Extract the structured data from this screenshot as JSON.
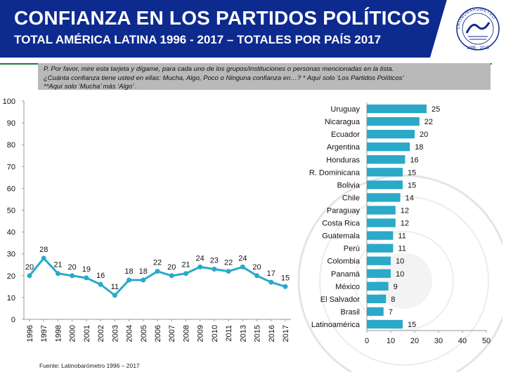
{
  "header": {
    "title": "CONFIANZA EN LOS PARTIDOS POLÍTICOS",
    "subtitle": "TOTAL AMÉRICA LATINA 1996 - 2017 – TOTALES POR PAÍS 2017",
    "logo_text": "LATINOBARÓMETRO",
    "logo_years": "1995 - 2015"
  },
  "question": {
    "line1": "P. Por favor, mire esta tarjeta y dígame, para cada uno de los grupos/instituciones o personas mencionadas en la lista.",
    "line2": "¿Cuánta confianza tiene usted en ellas: Mucha, Algo, Poco o Ninguna confianza en…? * Aquí solo ‘Los Partidos Políticos’",
    "line3": "**Aquí solo ‘Mucha’ más ‘Algo’ ."
  },
  "source": "Fuente: Latinobarómetro 1996 – 2017",
  "colors": {
    "header": "#0d2a8f",
    "line": "#2aa9c8",
    "bar": "#2aa9c8",
    "question_bg": "#b9b9b9",
    "accent": "#1b7a2e"
  },
  "chart_data": [
    {
      "type": "line",
      "x": [
        "1996",
        "1997",
        "1998",
        "2000",
        "2001",
        "2002",
        "2003",
        "2004",
        "2005",
        "2006",
        "2007",
        "2008",
        "2009",
        "2010",
        "2011",
        "2013",
        "2015",
        "2016",
        "2017"
      ],
      "series": [
        {
          "values": [
            20,
            28,
            21,
            20,
            19,
            16,
            11,
            18,
            18,
            22,
            20,
            21,
            24,
            23,
            22,
            24,
            20,
            17,
            15
          ]
        }
      ],
      "ylim": [
        0,
        100
      ],
      "yticks": [
        0,
        10,
        20,
        30,
        40,
        50,
        60,
        70,
        80,
        90,
        100
      ],
      "grid": false,
      "data_labels": true
    },
    {
      "type": "bar",
      "orientation": "horizontal",
      "categories": [
        "Uruguay",
        "Nicaragua",
        "Ecuador",
        "Argentina",
        "Honduras",
        "R. Dominicana",
        "Bolivia",
        "Chile",
        "Paraguay",
        "Costa Rica",
        "Guatemala",
        "Perú",
        "Colombia",
        "Panamá",
        "México",
        "El Salvador",
        "Brasil",
        "Latinoamérica"
      ],
      "values": [
        25,
        22,
        20,
        18,
        16,
        15,
        15,
        14,
        12,
        12,
        11,
        11,
        10,
        10,
        9,
        8,
        7,
        15
      ],
      "xlim": [
        0,
        50
      ],
      "xticks": [
        0,
        10,
        20,
        30,
        40,
        50
      ],
      "data_labels": true
    }
  ]
}
